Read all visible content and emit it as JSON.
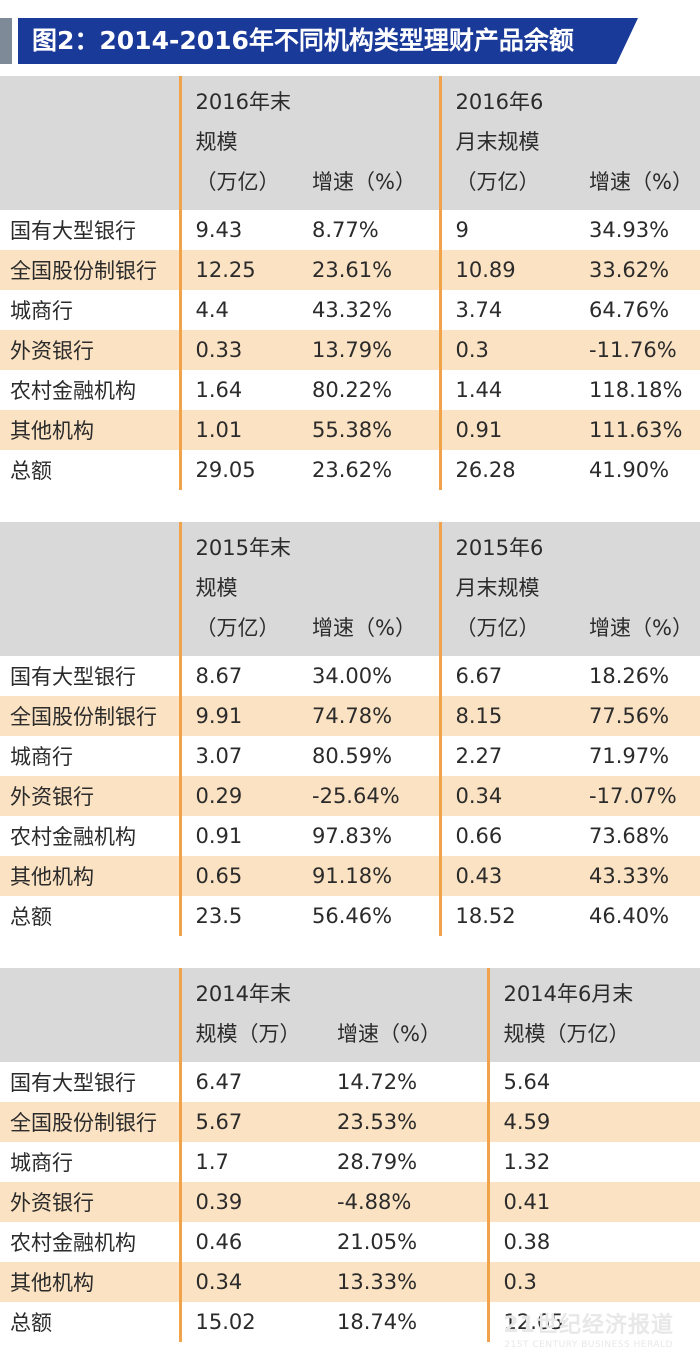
{
  "title": "图2：2014-2016年不同机构类型理财产品余额",
  "tables": [
    {
      "headers": [
        [],
        [
          "2016年末",
          "规模",
          "（万亿）"
        ],
        [
          "增速（%）"
        ],
        [
          "2016年6",
          "月末规模",
          "（万亿）"
        ],
        [
          "增速（%）"
        ]
      ],
      "rows": [
        [
          "国有大型银行",
          "9.43",
          "8.77%",
          "9",
          "34.93%"
        ],
        [
          "全国股份制银行",
          "12.25",
          "23.61%",
          "10.89",
          "33.62%"
        ],
        [
          "城商行",
          "4.4",
          "43.32%",
          "3.74",
          "64.76%"
        ],
        [
          "外资银行",
          "0.33",
          "13.79%",
          "0.3",
          "-11.76%"
        ],
        [
          "农村金融机构",
          "1.64",
          "80.22%",
          "1.44",
          "118.18%"
        ],
        [
          "其他机构",
          "1.01",
          "55.38%",
          "0.91",
          "111.63%"
        ],
        [
          "总额",
          "29.05",
          "23.62%",
          "26.28",
          "41.90%"
        ]
      ]
    },
    {
      "headers": [
        [],
        [
          "2015年末",
          "规模",
          "（万亿）"
        ],
        [
          "增速（%）"
        ],
        [
          "2015年6",
          "月末规模",
          "（万亿）"
        ],
        [
          "增速（%）"
        ]
      ],
      "rows": [
        [
          "国有大型银行",
          "8.67",
          "34.00%",
          "6.67",
          "18.26%"
        ],
        [
          "全国股份制银行",
          "9.91",
          "74.78%",
          "8.15",
          "77.56%"
        ],
        [
          "城商行",
          "3.07",
          "80.59%",
          "2.27",
          "71.97%"
        ],
        [
          "外资银行",
          "0.29",
          "-25.64%",
          "0.34",
          "-17.07%"
        ],
        [
          "农村金融机构",
          "0.91",
          "97.83%",
          "0.66",
          "73.68%"
        ],
        [
          "其他机构",
          "0.65",
          "91.18%",
          "0.43",
          "43.33%"
        ],
        [
          "总额",
          "23.5",
          "56.46%",
          "18.52",
          "46.40%"
        ]
      ]
    },
    {
      "headers": [
        [],
        [
          "2014年末",
          "规模（万）"
        ],
        [
          "增速（%）"
        ],
        [
          "2014年6月末",
          "规模（万亿）"
        ]
      ],
      "rows": [
        [
          "国有大型银行",
          "6.47",
          "14.72%",
          "5.64"
        ],
        [
          "全国股份制银行",
          "5.67",
          "23.53%",
          "4.59"
        ],
        [
          "城商行",
          "1.7",
          "28.79%",
          "1.32"
        ],
        [
          "外资银行",
          "0.39",
          "-4.88%",
          "0.41"
        ],
        [
          "农村金融机构",
          "0.46",
          "21.05%",
          "0.38"
        ],
        [
          "其他机构",
          "0.34",
          "13.33%",
          "0.3"
        ],
        [
          "总额",
          "15.02",
          "18.74%",
          "12.65"
        ]
      ]
    }
  ],
  "watermark": {
    "cn": "21世纪经济报道",
    "en": "21ST CENTURY BUSINESS HERALD"
  },
  "colors": {
    "title_bar": "#1a3a99",
    "header_bg": "#d9d9d9",
    "alt_row": "#fbe2c2",
    "separator": "#f0a34a"
  }
}
